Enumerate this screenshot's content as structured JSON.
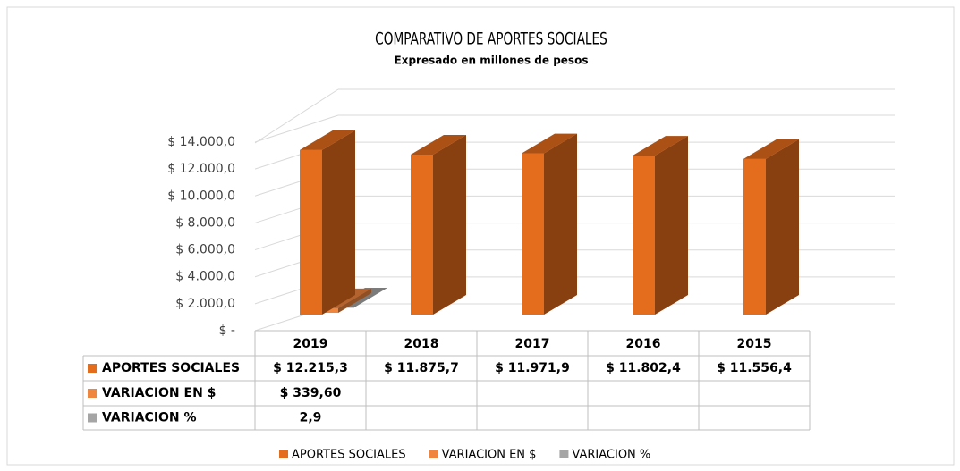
{
  "chart_data": {
    "type": "bar",
    "title": "COMPARATIVO DE APORTES SOCIALES",
    "subtitle": "Expresado en millones de pesos",
    "categories": [
      "2019",
      "2018",
      "2017",
      "2016",
      "2015"
    ],
    "series": [
      {
        "name": "APORTES SOCIALES",
        "color": "#e46c1d",
        "values": [
          12215.3,
          11875.7,
          11971.9,
          11802.4,
          11556.4
        ],
        "value_labels": [
          "$ 12.215,3",
          "$ 11.875,7",
          "$ 11.971,9",
          "$ 11.802,4",
          "$ 11.556,4"
        ]
      },
      {
        "name": "VARIACION EN $",
        "color": "#f0853e",
        "values": [
          339.6,
          null,
          null,
          null,
          null
        ],
        "value_labels": [
          "$ 339,60",
          null,
          null,
          null,
          null
        ]
      },
      {
        "name": "VARIACION %",
        "color": "#a5a5a5",
        "values": [
          2.9,
          null,
          null,
          null,
          null
        ],
        "value_labels": [
          "2,9",
          null,
          null,
          null,
          null
        ]
      }
    ],
    "ylim": [
      0,
      14000
    ],
    "yticks": [
      {
        "value": 0,
        "label": "$ -"
      },
      {
        "value": 2000,
        "label": "$ 2.000,0"
      },
      {
        "value": 4000,
        "label": "$ 4.000,0"
      },
      {
        "value": 6000,
        "label": "$ 6.000,0"
      },
      {
        "value": 8000,
        "label": "$ 8.000,0"
      },
      {
        "value": 10000,
        "label": "$ 10.000,0"
      },
      {
        "value": 12000,
        "label": "$ 12.000,0"
      },
      {
        "value": 14000,
        "label": "$ 14.000,0"
      }
    ],
    "grid": true
  }
}
